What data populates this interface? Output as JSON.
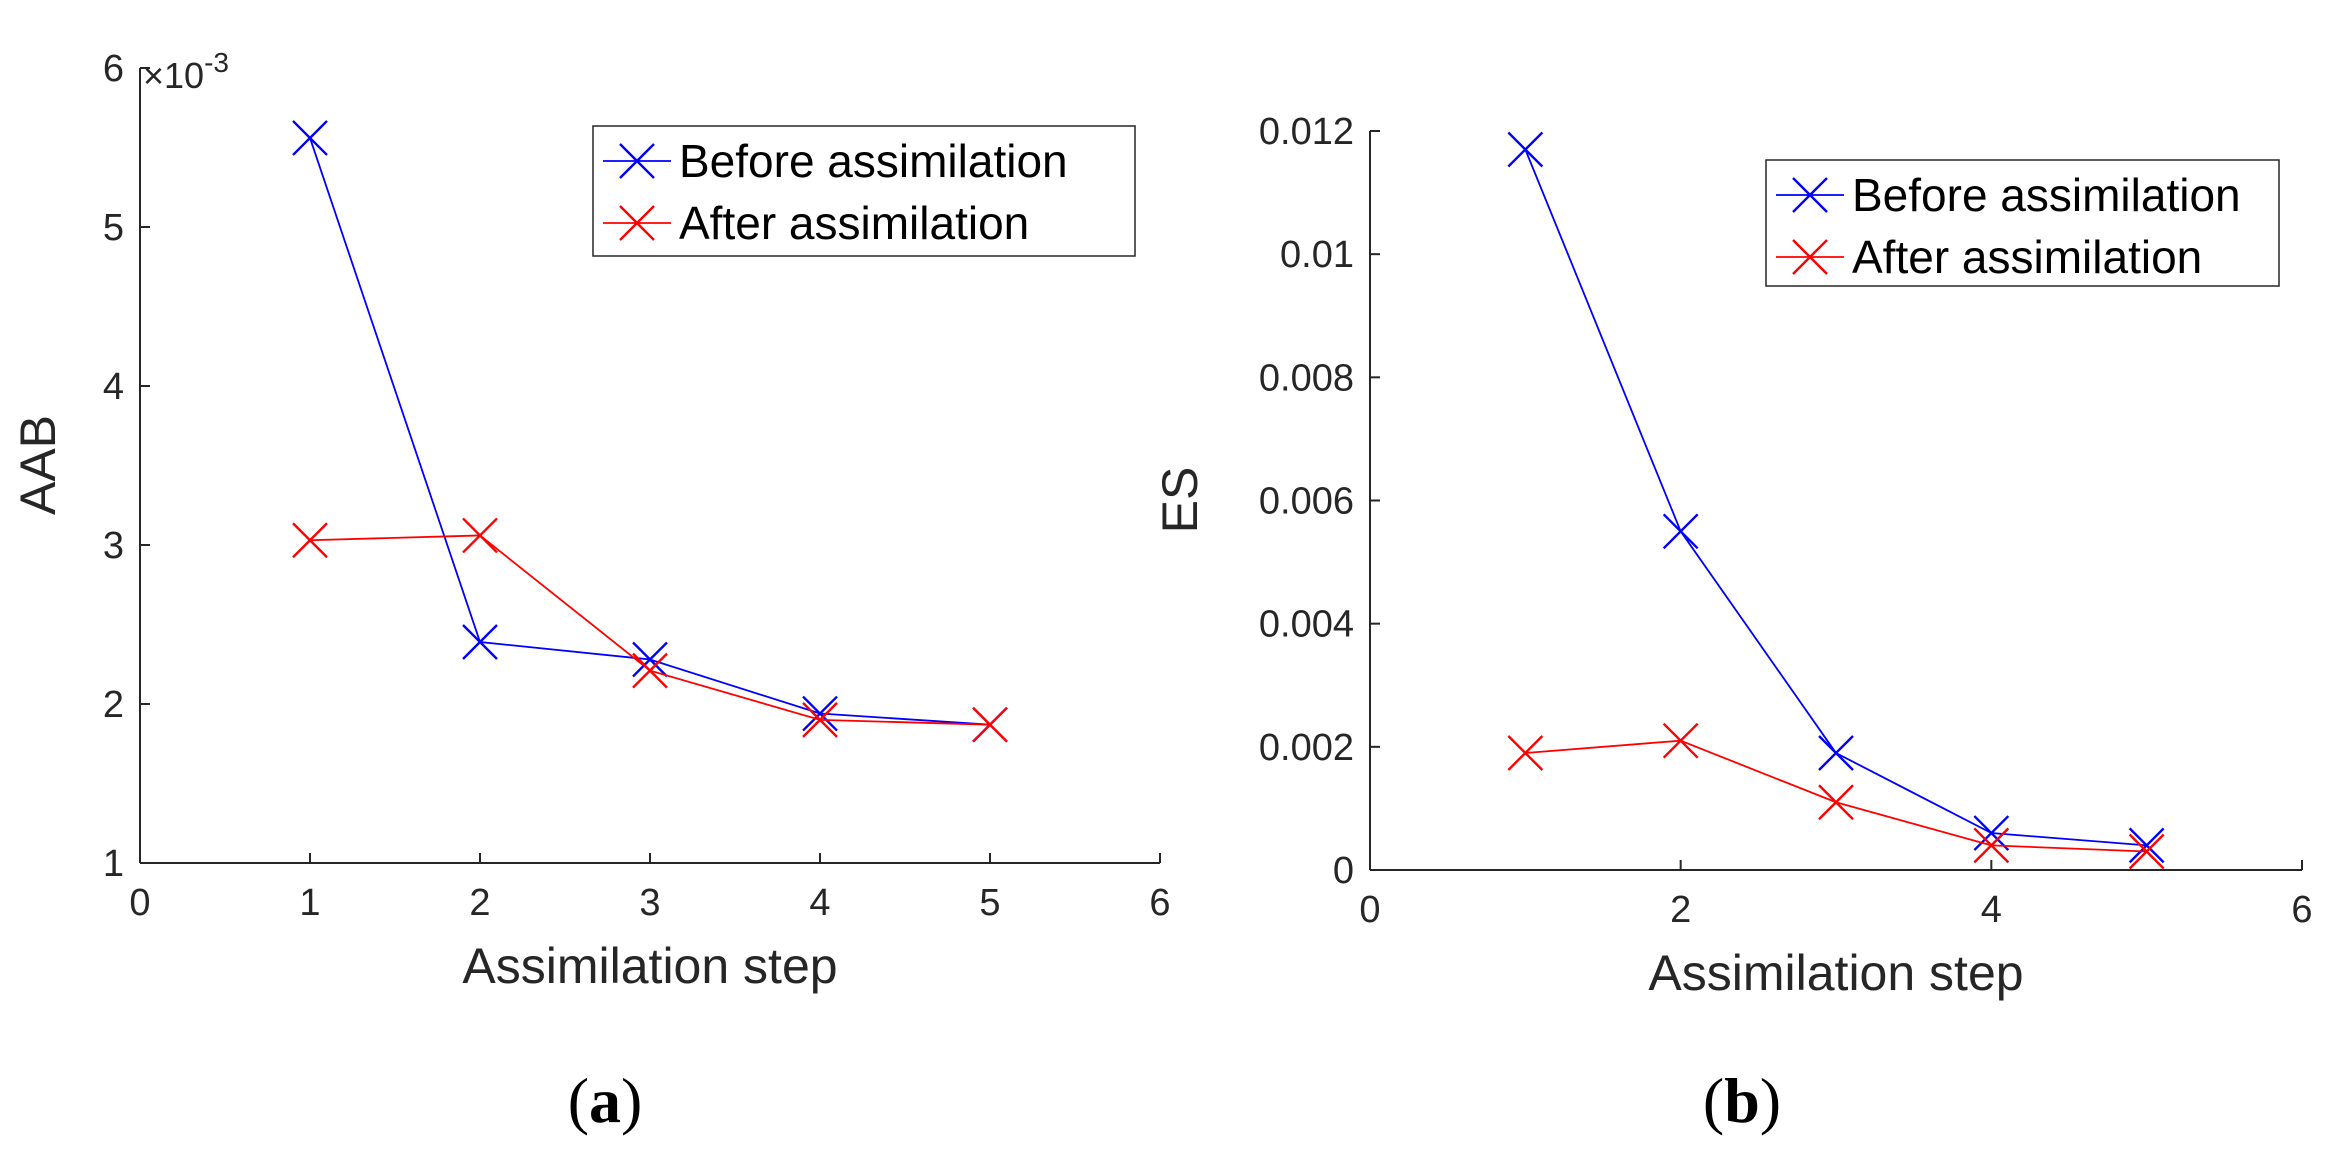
{
  "colors": {
    "before": "#0000ff",
    "after": "#ff0000",
    "axis": "#262626"
  },
  "chart_data": [
    {
      "type": "line",
      "panel": "a",
      "caption_open": "(",
      "caption_letter": "a",
      "caption_close": ")",
      "xlabel": "Assimilation step",
      "ylabel": "AAB",
      "xlim": [
        0,
        6
      ],
      "ylim": [
        1,
        6
      ],
      "xticks": [
        0,
        1,
        2,
        3,
        4,
        5,
        6
      ],
      "yticks": [
        1,
        2,
        3,
        4,
        5,
        6
      ],
      "ytick_labels": [
        "1",
        "2",
        "3",
        "4",
        "5",
        "6"
      ],
      "y_exponent_prefix": "×10",
      "y_exponent_power": "-3",
      "legend_position": "top-right",
      "x": [
        1,
        2,
        3,
        4,
        5
      ],
      "series": [
        {
          "name": "Before assimilation",
          "color": "#0000ff",
          "values": [
            5.56,
            2.39,
            2.28,
            1.94,
            1.87
          ]
        },
        {
          "name": "After assimilation",
          "color": "#ff0000",
          "values": [
            3.03,
            3.06,
            2.21,
            1.9,
            1.87
          ]
        }
      ]
    },
    {
      "type": "line",
      "panel": "b",
      "caption_open": "(",
      "caption_letter": "b",
      "caption_close": ")",
      "xlabel": "Assimilation step",
      "ylabel": "ES",
      "xlim": [
        0,
        6
      ],
      "ylim": [
        0,
        0.012
      ],
      "xticks": [
        0,
        2,
        4,
        6
      ],
      "yticks": [
        0,
        0.002,
        0.004,
        0.006,
        0.008,
        0.01,
        0.012
      ],
      "ytick_labels": [
        "0",
        "0.002",
        "0.004",
        "0.006",
        "0.008",
        "0.01",
        "0.012"
      ],
      "legend_position": "top-right",
      "x": [
        1,
        2,
        3,
        4,
        5
      ],
      "series": [
        {
          "name": "Before assimilation",
          "color": "#0000ff",
          "values": [
            0.0117,
            0.0055,
            0.0019,
            0.0006,
            0.0004
          ]
        },
        {
          "name": "After assimilation",
          "color": "#ff0000",
          "values": [
            0.0019,
            0.0021,
            0.0011,
            0.0004,
            0.0003
          ]
        }
      ]
    }
  ]
}
